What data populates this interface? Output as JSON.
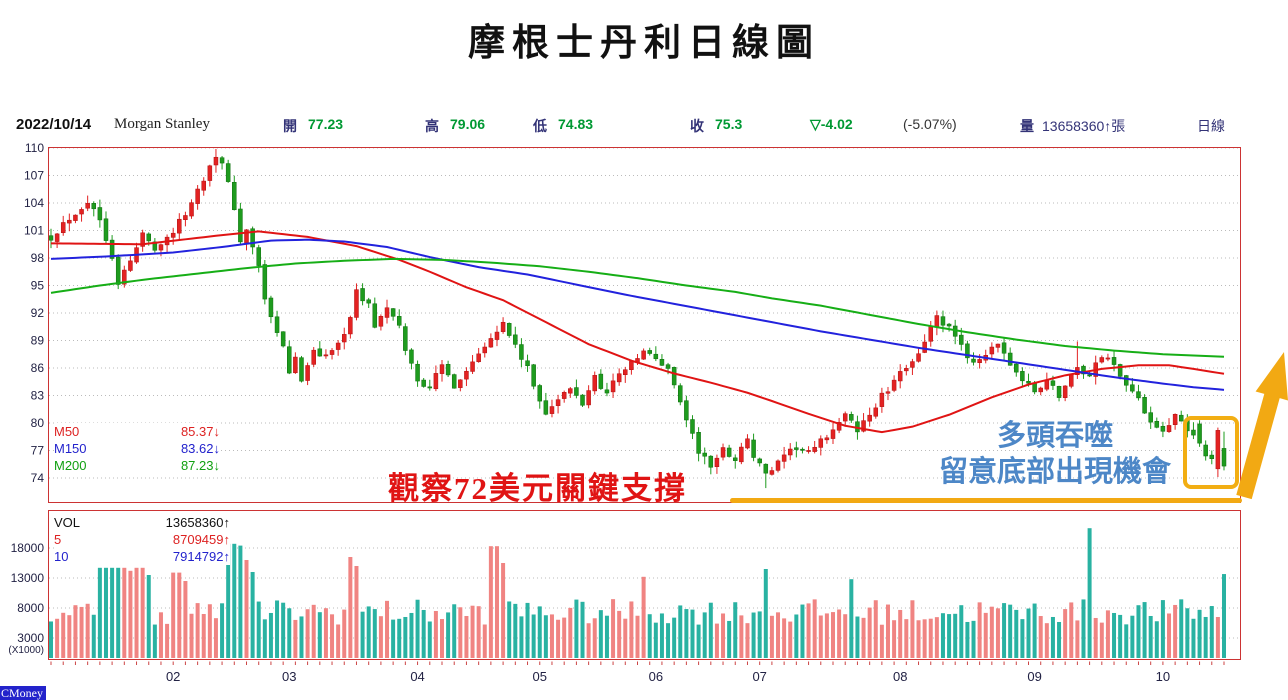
{
  "title": "摩根士丹利日線圖",
  "header": {
    "date": "2022/10/14",
    "name": "Morgan Stanley",
    "open_label": "開",
    "open": "77.23",
    "high_label": "高",
    "high": "79.06",
    "low_label": "低",
    "low": "74.83",
    "close_label": "收",
    "close": "75.3",
    "change": "▽-4.02",
    "change_pct": "(-5.07%)",
    "volume_label": "量",
    "volume_value": "13658360↑張",
    "period": "日線"
  },
  "price_legend": [
    {
      "label": "M50",
      "value": "85.37",
      "arrow": "↓",
      "color": "#dd2222"
    },
    {
      "label": "M150",
      "value": "83.62",
      "arrow": "↓",
      "color": "#2222cc"
    },
    {
      "label": "M200",
      "value": "87.23",
      "arrow": "↓",
      "color": "#11a011"
    }
  ],
  "volume_legend": [
    {
      "label": "VOL",
      "value": "13658360",
      "arrow": "↑",
      "color": "#111111"
    },
    {
      "label": "5",
      "value": "8709459",
      "arrow": "↑",
      "color": "#dd2222"
    },
    {
      "label": "10",
      "value": "7914792",
      "arrow": "↑",
      "color": "#2222cc"
    }
  ],
  "annotations": {
    "support_text": "觀察72美元關鍵支撐",
    "bullish_line1": "多頭吞噬",
    "bullish_line2": "留意底部出現機會"
  },
  "footer": {
    "brand": "CMoney"
  },
  "colors": {
    "candle_up": "#e32222",
    "candle_up_stroke": "#b01010",
    "candle_down": "#1e9b1e",
    "candle_down_stroke": "#0d6e0d",
    "ma50": "#e01414",
    "ma150": "#2222dd",
    "ma200": "#16ae16",
    "vol_up": "#f08482",
    "vol_down": "#29b2a2",
    "grid": "#bbbbbb",
    "panel_border": "#cc3333",
    "axis_text": "#222244",
    "highlight_orange": "#f2a913",
    "annotation_red": "#e01414",
    "annotation_blue": "#4d87c7"
  },
  "chart_data": {
    "type": "candlestick+volume",
    "title": "摩根士丹利日線圖",
    "last_day": {
      "date": "2022/10/14",
      "open": 77.23,
      "high": 79.06,
      "low": 74.83,
      "close": 75.3,
      "change": -4.02,
      "change_pct": -5.07,
      "volume": 13658360
    },
    "y_axis": {
      "min": 74,
      "max": 110,
      "step": 3,
      "labels": [
        110,
        107,
        104,
        101,
        98,
        95,
        92,
        89,
        86,
        83,
        80,
        77,
        74
      ]
    },
    "volume_axis": {
      "labels": [
        18000,
        13000,
        8000,
        3000
      ],
      "unit": "(X1000)",
      "scale_note": "X1000"
    },
    "x_axis": {
      "months": [
        "02",
        "03",
        "04",
        "05",
        "06",
        "07",
        "08",
        "09",
        "10"
      ],
      "month_day_index": [
        20,
        39,
        60,
        80,
        99,
        116,
        139,
        161,
        182
      ],
      "total_days": 193
    },
    "ma_values": {
      "m50": 85.37,
      "m150": 83.62,
      "m200": 87.23
    },
    "price_anchors": [
      [
        0,
        100.3
      ],
      [
        2,
        101.8
      ],
      [
        4,
        103.0
      ],
      [
        6,
        104.2
      ],
      [
        8,
        102.3
      ],
      [
        10,
        98.3
      ],
      [
        11,
        95.4
      ],
      [
        13,
        97.6
      ],
      [
        15,
        100.6
      ],
      [
        17,
        99.2
      ],
      [
        19,
        100.2
      ],
      [
        21,
        101.8
      ],
      [
        23,
        104.0
      ],
      [
        25,
        106.8
      ],
      [
        27,
        109.4
      ],
      [
        28,
        108.2
      ],
      [
        30,
        103.6
      ],
      [
        31,
        99.8
      ],
      [
        32,
        100.9
      ],
      [
        34,
        97.2
      ],
      [
        35,
        93.4
      ],
      [
        36,
        91.2
      ],
      [
        38,
        88.2
      ],
      [
        39,
        85.6
      ],
      [
        40,
        86.8
      ],
      [
        41,
        84.9
      ],
      [
        43,
        88.1
      ],
      [
        45,
        87.2
      ],
      [
        47,
        88.6
      ],
      [
        49,
        91.6
      ],
      [
        50,
        94.2
      ],
      [
        52,
        92.9
      ],
      [
        53,
        90.7
      ],
      [
        55,
        92.4
      ],
      [
        57,
        90.3
      ],
      [
        58,
        88.1
      ],
      [
        60,
        84.6
      ],
      [
        62,
        84.1
      ],
      [
        64,
        86.1
      ],
      [
        66,
        84.2
      ],
      [
        68,
        85.7
      ],
      [
        70,
        87.8
      ],
      [
        72,
        89.6
      ],
      [
        74,
        90.8
      ],
      [
        76,
        88.4
      ],
      [
        78,
        85.8
      ],
      [
        80,
        82.4
      ],
      [
        81,
        81.3
      ],
      [
        83,
        82.6
      ],
      [
        85,
        83.6
      ],
      [
        87,
        82.1
      ],
      [
        89,
        85.1
      ],
      [
        91,
        83.2
      ],
      [
        93,
        85.6
      ],
      [
        95,
        86.4
      ],
      [
        97,
        87.8
      ],
      [
        99,
        86.9
      ],
      [
        101,
        85.9
      ],
      [
        102,
        84.4
      ],
      [
        104,
        80.4
      ],
      [
        106,
        76.9
      ],
      [
        108,
        75.3
      ],
      [
        110,
        77.1
      ],
      [
        112,
        76.1
      ],
      [
        114,
        78.4
      ],
      [
        115,
        76.3
      ],
      [
        117,
        74.4
      ],
      [
        118,
        74.9
      ],
      [
        120,
        76.1
      ],
      [
        122,
        77.4
      ],
      [
        124,
        76.6
      ],
      [
        126,
        77.9
      ],
      [
        128,
        79.4
      ],
      [
        130,
        80.7
      ],
      [
        132,
        79.3
      ],
      [
        134,
        80.9
      ],
      [
        136,
        82.9
      ],
      [
        138,
        84.3
      ],
      [
        140,
        86.2
      ],
      [
        142,
        87.8
      ],
      [
        144,
        90.3
      ],
      [
        145,
        91.4
      ],
      [
        147,
        90.2
      ],
      [
        149,
        88.2
      ],
      [
        151,
        86.7
      ],
      [
        153,
        87.6
      ],
      [
        155,
        88.2
      ],
      [
        157,
        86.6
      ],
      [
        159,
        84.6
      ],
      [
        161,
        83.4
      ],
      [
        163,
        84.6
      ],
      [
        165,
        83.1
      ],
      [
        167,
        85.0
      ],
      [
        168,
        86.2
      ],
      [
        170,
        85.1
      ],
      [
        172,
        87.4
      ],
      [
        174,
        86.4
      ],
      [
        176,
        84.4
      ],
      [
        178,
        82.4
      ],
      [
        180,
        80.4
      ],
      [
        182,
        79.4
      ],
      [
        184,
        80.6
      ],
      [
        186,
        79.2
      ],
      [
        187,
        78.6
      ]
    ],
    "last_candles": [
      {
        "o": 79.9,
        "h": 80.3,
        "l": 77.4,
        "c": 77.8
      },
      {
        "o": 77.6,
        "h": 78.1,
        "l": 75.9,
        "c": 76.4
      },
      {
        "o": 76.5,
        "h": 77.0,
        "l": 75.5,
        "c": 76.1
      },
      {
        "o": 75.0,
        "h": 79.5,
        "l": 74.1,
        "c": 79.2
      },
      {
        "o": 77.23,
        "h": 79.06,
        "l": 74.83,
        "c": 75.3
      }
    ],
    "special_wicks": [
      {
        "day": 27,
        "high": 109.9
      },
      {
        "day": 117,
        "low": 72.9
      },
      {
        "day": 168,
        "high": 88.9
      }
    ],
    "ma_anchors": {
      "m50": [
        [
          0,
          99.6
        ],
        [
          15,
          99.5
        ],
        [
          28,
          100.5
        ],
        [
          34,
          100.9
        ],
        [
          42,
          100.3
        ],
        [
          50,
          99.3
        ],
        [
          57,
          97.8
        ],
        [
          62,
          96.5
        ],
        [
          68,
          94.8
        ],
        [
          74,
          93.4
        ],
        [
          81,
          91.0
        ],
        [
          88,
          88.6
        ],
        [
          95,
          86.8
        ],
        [
          102,
          85.4
        ],
        [
          108,
          84.4
        ],
        [
          114,
          83.3
        ],
        [
          118,
          82.4
        ],
        [
          124,
          81.0
        ],
        [
          130,
          79.7
        ],
        [
          136,
          79.0
        ],
        [
          141,
          79.6
        ],
        [
          147,
          80.9
        ],
        [
          154,
          82.8
        ],
        [
          160,
          84.2
        ],
        [
          166,
          85.2
        ],
        [
          172,
          85.9
        ],
        [
          178,
          86.3
        ],
        [
          183,
          86.3
        ],
        [
          187,
          85.9
        ],
        [
          192,
          85.37
        ]
      ],
      "m150": [
        [
          0,
          97.9
        ],
        [
          10,
          98.2
        ],
        [
          20,
          98.6
        ],
        [
          28,
          99.2
        ],
        [
          36,
          99.9
        ],
        [
          42,
          100.0
        ],
        [
          48,
          99.8
        ],
        [
          55,
          99.2
        ],
        [
          62,
          98.1
        ],
        [
          70,
          97.0
        ],
        [
          78,
          96.2
        ],
        [
          86,
          95.1
        ],
        [
          94,
          94.0
        ],
        [
          102,
          93.0
        ],
        [
          110,
          92.0
        ],
        [
          118,
          91.0
        ],
        [
          126,
          90.0
        ],
        [
          134,
          89.1
        ],
        [
          142,
          88.2
        ],
        [
          150,
          87.4
        ],
        [
          158,
          86.6
        ],
        [
          166,
          85.8
        ],
        [
          174,
          85.0
        ],
        [
          182,
          84.3
        ],
        [
          187,
          83.9
        ],
        [
          192,
          83.62
        ]
      ],
      "m200": [
        [
          0,
          94.2
        ],
        [
          8,
          95.0
        ],
        [
          16,
          95.7
        ],
        [
          24,
          96.3
        ],
        [
          32,
          96.9
        ],
        [
          40,
          97.4
        ],
        [
          48,
          97.7
        ],
        [
          56,
          97.9
        ],
        [
          64,
          97.8
        ],
        [
          72,
          97.5
        ],
        [
          80,
          97.1
        ],
        [
          88,
          96.5
        ],
        [
          96,
          95.8
        ],
        [
          104,
          95.0
        ],
        [
          112,
          94.3
        ],
        [
          118,
          93.6
        ],
        [
          126,
          92.8
        ],
        [
          134,
          91.8
        ],
        [
          142,
          90.8
        ],
        [
          150,
          89.9
        ],
        [
          158,
          89.1
        ],
        [
          166,
          88.4
        ],
        [
          174,
          87.9
        ],
        [
          182,
          87.5
        ],
        [
          192,
          87.23
        ]
      ]
    },
    "volume_overrides": {
      "8": 14700,
      "9": 14700,
      "10": 14700,
      "11": 14700,
      "12": 14700,
      "13": 14200,
      "14": 14700,
      "15": 14700,
      "16": 13500,
      "20": 13900,
      "21": 13900,
      "22": 12500,
      "29": 18700,
      "30": 18700,
      "31": 18400,
      "32": 16000,
      "33": 14000,
      "49": 16500,
      "50": 15000,
      "72": 18300,
      "73": 18300,
      "74": 15500,
      "97": 13200,
      "117": 14500,
      "131": 12800,
      "170": 21300,
      "191": 6500,
      "192": 13658
    }
  }
}
